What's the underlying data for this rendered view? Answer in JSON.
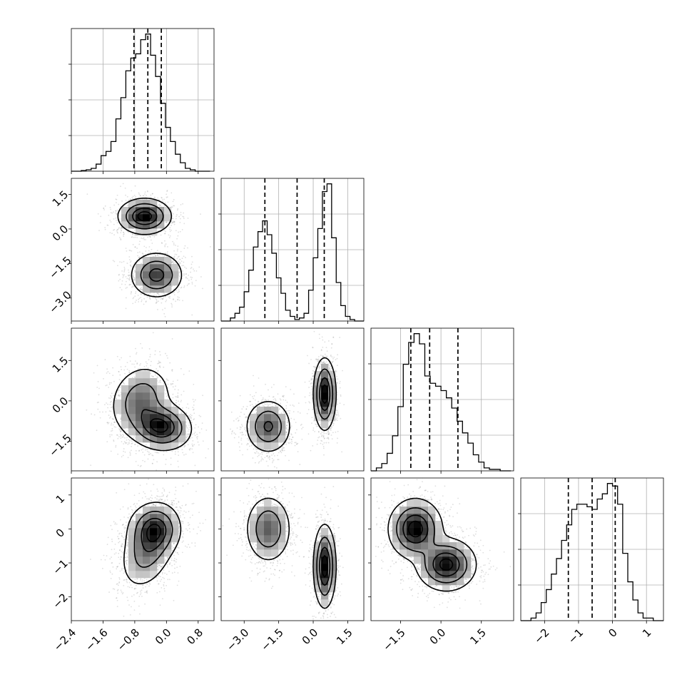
{
  "chart_data": {
    "type": "corner",
    "title": "",
    "grid": true,
    "n_params": 4,
    "param_labels": [
      "",
      "",
      "",
      ""
    ],
    "ranges": [
      [
        -2.4,
        1.2
      ],
      [
        -4.0,
        2.2
      ],
      [
        -2.6,
        2.7
      ],
      [
        -2.7,
        1.5
      ]
    ],
    "ticks": [
      [
        -2.4,
        -1.6,
        -0.8,
        0.0,
        0.8
      ],
      [
        -3.0,
        -1.5,
        0.0,
        1.5
      ],
      [
        -1.5,
        0.0,
        1.5
      ],
      [
        -2,
        -1,
        0,
        1
      ]
    ],
    "tick_labels": [
      [
        "−2.4",
        "−1.6",
        "−0.8",
        "0.0",
        "0.8"
      ],
      [
        "−3.0",
        "−1.5",
        "0.0",
        "1.5"
      ],
      [
        "−1.5",
        "0.0",
        "1.5"
      ],
      [
        "−2",
        "−1",
        "0",
        "1"
      ]
    ],
    "histograms": [
      {
        "param": 0,
        "bin_edges": [
          -2.4,
          -2.275,
          -2.15,
          -2.025,
          -1.9,
          -1.775,
          -1.65,
          -1.525,
          -1.4,
          -1.275,
          -1.15,
          -1.025,
          -0.9,
          -0.775,
          -0.65,
          -0.525,
          -0.4,
          -0.275,
          -0.15,
          -0.025,
          0.1,
          0.225,
          0.35,
          0.475,
          0.6,
          0.725,
          0.85,
          0.975,
          1.1
        ],
        "counts": [
          0,
          0,
          0.005,
          0.01,
          0.02,
          0.05,
          0.11,
          0.14,
          0.21,
          0.37,
          0.52,
          0.71,
          0.8,
          0.83,
          0.93,
          0.97,
          0.82,
          0.67,
          0.48,
          0.31,
          0.21,
          0.12,
          0.06,
          0.02,
          0.01,
          0,
          0,
          0
        ],
        "quantiles": [
          -0.82,
          -0.47,
          -0.13
        ]
      },
      {
        "param": 1,
        "bin_edges": [
          -4.0,
          -3.8,
          -3.6,
          -3.4,
          -3.2,
          -3.0,
          -2.8,
          -2.6,
          -2.4,
          -2.2,
          -2.0,
          -1.8,
          -1.6,
          -1.4,
          -1.2,
          -1.0,
          -0.8,
          -0.6,
          -0.4,
          -0.2,
          0.0,
          0.2,
          0.4,
          0.6,
          0.8,
          1.0,
          1.2,
          1.4,
          1.6,
          1.8,
          2.0,
          2.2
        ],
        "counts": [
          0,
          0,
          0.02,
          0.05,
          0.09,
          0.19,
          0.33,
          0.48,
          0.58,
          0.65,
          0.56,
          0.44,
          0.28,
          0.18,
          0.07,
          0.03,
          0.01,
          0.02,
          0.05,
          0.2,
          0.41,
          0.6,
          0.84,
          0.89,
          0.54,
          0.25,
          0.1,
          0.03,
          0.01,
          0,
          0
        ],
        "quantiles": [
          -2.1,
          -0.7,
          0.48
        ]
      },
      {
        "param": 2,
        "bin_edges": [
          -2.6,
          -2.4,
          -2.2,
          -2.0,
          -1.8,
          -1.6,
          -1.4,
          -1.2,
          -1.0,
          -0.8,
          -0.6,
          -0.4,
          -0.2,
          0.0,
          0.2,
          0.4,
          0.6,
          0.8,
          1.0,
          1.2,
          1.4,
          1.6,
          1.8,
          2.0,
          2.2,
          2.4,
          2.6
        ],
        "counts": [
          0,
          0.02,
          0.05,
          0.12,
          0.24,
          0.44,
          0.73,
          0.88,
          0.94,
          0.87,
          0.65,
          0.6,
          0.58,
          0.55,
          0.5,
          0.43,
          0.34,
          0.26,
          0.19,
          0.11,
          0.06,
          0.02,
          0.01,
          0.01,
          0,
          0
        ],
        "quantiles": [
          -1.12,
          -0.42,
          0.63
        ]
      },
      {
        "param": 3,
        "bin_edges": [
          -2.7,
          -2.55,
          -2.4,
          -2.25,
          -2.1,
          -1.95,
          -1.8,
          -1.65,
          -1.5,
          -1.35,
          -1.2,
          -1.05,
          -0.9,
          -0.75,
          -0.6,
          -0.45,
          -0.3,
          -0.15,
          0.0,
          0.15,
          0.3,
          0.45,
          0.6,
          0.75,
          0.9,
          1.05,
          1.2,
          1.35,
          1.5
        ],
        "counts": [
          0,
          0,
          0.01,
          0.03,
          0.07,
          0.12,
          0.18,
          0.24,
          0.31,
          0.37,
          0.43,
          0.45,
          0.45,
          0.44,
          0.43,
          0.47,
          0.49,
          0.53,
          0.52,
          0.45,
          0.26,
          0.15,
          0.08,
          0.03,
          0.01,
          0.01,
          0,
          0
        ],
        "quantiles": [
          -1.3,
          -0.6,
          0.08
        ]
      }
    ],
    "pairs": [
      {
        "x_param": 0,
        "y_param": 1,
        "modes": [
          {
            "mx": -0.55,
            "my": 0.55,
            "sx": 0.3,
            "sy": 0.35,
            "rho": 0.0,
            "w": 0.52
          },
          {
            "mx": -0.25,
            "my": -2.0,
            "sx": 0.3,
            "sy": 0.45,
            "rho": 0.0,
            "w": 0.48
          }
        ]
      },
      {
        "x_param": 0,
        "y_param": 2,
        "modes": [
          {
            "mx": -0.65,
            "my": 0.0,
            "sx": 0.35,
            "sy": 0.6,
            "rho": 0.15,
            "w": 0.45
          },
          {
            "mx": -0.15,
            "my": -0.95,
            "sx": 0.35,
            "sy": 0.4,
            "rho": -0.1,
            "w": 0.55
          }
        ]
      },
      {
        "x_param": 1,
        "y_param": 2,
        "modes": [
          {
            "mx": -1.95,
            "my": -0.95,
            "sx": 0.45,
            "sy": 0.45,
            "rho": 0.0,
            "w": 0.5
          },
          {
            "mx": 0.5,
            "my": 0.25,
            "sx": 0.22,
            "sy": 0.6,
            "rho": 0.0,
            "w": 0.5
          }
        ]
      },
      {
        "x_param": 0,
        "y_param": 3,
        "modes": [
          {
            "mx": -0.45,
            "my": -0.55,
            "sx": 0.32,
            "sy": 0.55,
            "rho": 0.35,
            "w": 0.55
          },
          {
            "mx": -0.3,
            "my": 0.0,
            "sx": 0.3,
            "sy": 0.35,
            "rho": 0.0,
            "w": 0.45
          }
        ]
      },
      {
        "x_param": 1,
        "y_param": 3,
        "modes": [
          {
            "mx": -1.95,
            "my": 0.0,
            "sx": 0.45,
            "sy": 0.45,
            "rho": 0.0,
            "w": 0.5
          },
          {
            "mx": 0.5,
            "my": -1.1,
            "sx": 0.22,
            "sy": 0.55,
            "rho": 0.0,
            "w": 0.5
          }
        ]
      },
      {
        "x_param": 2,
        "y_param": 3,
        "modes": [
          {
            "mx": -0.95,
            "my": 0.0,
            "sx": 0.45,
            "sy": 0.4,
            "rho": 0.0,
            "w": 0.52
          },
          {
            "mx": 0.2,
            "my": -1.05,
            "sx": 0.5,
            "sy": 0.35,
            "rho": 0.0,
            "w": 0.48
          }
        ]
      }
    ],
    "contour_levels": [
      0.08,
      0.3,
      0.6,
      0.85
    ]
  }
}
